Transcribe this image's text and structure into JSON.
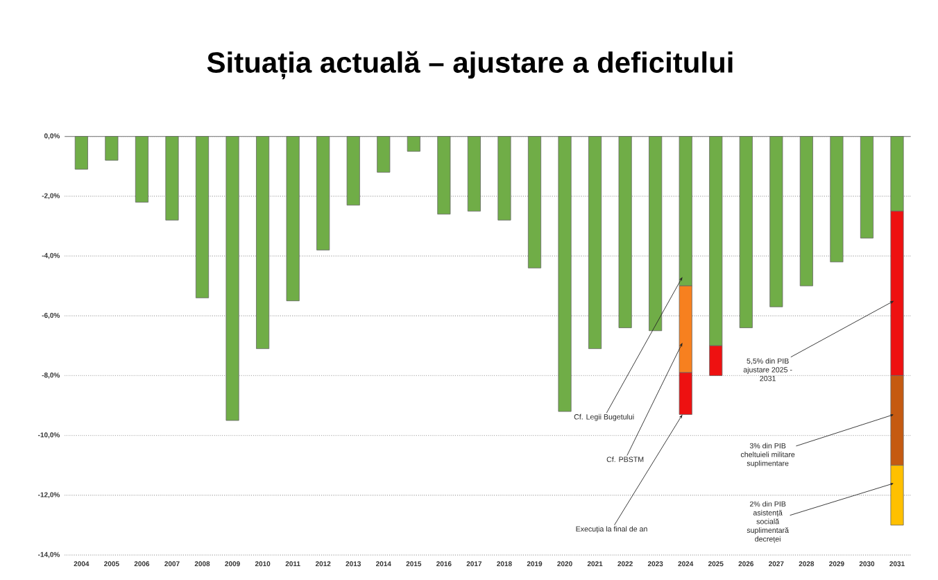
{
  "chart_data": {
    "type": "bar",
    "title": "Situația actuală – ajustare a deficitului",
    "categories": [
      "2004",
      "2005",
      "2006",
      "2007",
      "2008",
      "2009",
      "2010",
      "2011",
      "2012",
      "2013",
      "2014",
      "2015",
      "2016",
      "2017",
      "2018",
      "2019",
      "2020",
      "2021",
      "2022",
      "2023",
      "2024",
      "2025",
      "2026",
      "2027",
      "2028",
      "2029",
      "2030",
      "2031"
    ],
    "stacked": true,
    "series": [
      {
        "color": "#70ad47",
        "values": [
          -1.1,
          -0.8,
          -2.2,
          -2.8,
          -5.4,
          -9.5,
          -7.1,
          -5.5,
          -3.8,
          -2.3,
          -1.2,
          -0.5,
          -2.6,
          -2.5,
          -2.8,
          -4.4,
          -9.2,
          -7.1,
          -6.4,
          -6.5,
          -5.0,
          -7.0,
          -6.4,
          -5.7,
          -5.0,
          -4.2,
          -3.4,
          -2.5
        ]
      },
      {
        "color": "#f7801f",
        "values": [
          null,
          null,
          null,
          null,
          null,
          null,
          null,
          null,
          null,
          null,
          null,
          null,
          null,
          null,
          null,
          null,
          null,
          null,
          null,
          null,
          -2.9,
          null,
          null,
          null,
          null,
          null,
          null,
          null
        ]
      },
      {
        "color": "#ee1111",
        "values": [
          null,
          null,
          null,
          null,
          null,
          null,
          null,
          null,
          null,
          null,
          null,
          null,
          null,
          null,
          null,
          null,
          null,
          null,
          null,
          null,
          -1.4,
          -1.0,
          null,
          null,
          null,
          null,
          null,
          -5.5
        ]
      },
      {
        "color": "#c55a11",
        "values": [
          null,
          null,
          null,
          null,
          null,
          null,
          null,
          null,
          null,
          null,
          null,
          null,
          null,
          null,
          null,
          null,
          null,
          null,
          null,
          null,
          null,
          null,
          null,
          null,
          null,
          null,
          null,
          -3.0
        ]
      },
      {
        "color": "#ffc000",
        "values": [
          null,
          null,
          null,
          null,
          null,
          null,
          null,
          null,
          null,
          null,
          null,
          null,
          null,
          null,
          null,
          null,
          null,
          null,
          null,
          null,
          null,
          null,
          null,
          null,
          null,
          null,
          null,
          -2.0
        ]
      }
    ],
    "ylim": [
      -14,
      0
    ],
    "yticks": [
      {
        "value": 0,
        "label": "0,0%"
      },
      {
        "value": -2,
        "label": "-2,0%"
      },
      {
        "value": -4,
        "label": "-4,0%"
      },
      {
        "value": -6,
        "label": "-6,0%"
      },
      {
        "value": -8,
        "label": "-8,0%"
      },
      {
        "value": -10,
        "label": "-10,0%"
      },
      {
        "value": -12,
        "label": "-12,0%"
      },
      {
        "value": -14,
        "label": "-14,0%"
      }
    ],
    "grid": "y",
    "annotations": [
      {
        "text": "Cf. Legii Bugetului",
        "x": "2024",
        "y": -4.7
      },
      {
        "text": "Cf. PBSTM",
        "x": "2024",
        "y": -6.9
      },
      {
        "text": "Execuția la final de an",
        "x": "2024",
        "y": -9.3
      },
      {
        "text": "5,5% din PIB ajustare 2025 - 2031",
        "x": "2031",
        "y": -5.5
      },
      {
        "text": "3% din PIB cheltuieli militare suplimentare",
        "x": "2031",
        "y": -9.3
      },
      {
        "text": "2% din PIB asistență socială suplimentară decreței",
        "x": "2031",
        "y": -11.6
      }
    ]
  }
}
